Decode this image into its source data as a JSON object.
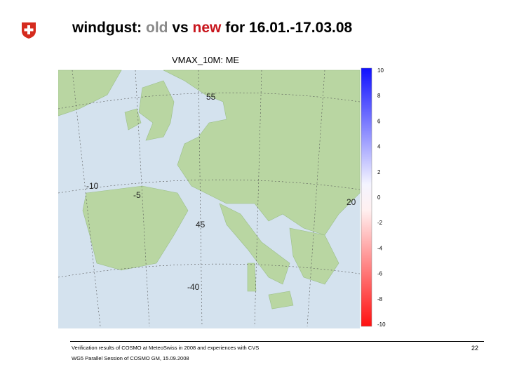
{
  "header": {
    "title": {
      "prefix": "windgust:",
      "old": "old",
      "vs": "vs",
      "new": "new",
      "suffix": "for 16.01.-17.03.08"
    }
  },
  "map": {
    "title": "VMAX_10M: ME",
    "grid_labels": [
      "55",
      "-10",
      "-5",
      "45",
      "-40",
      "20"
    ],
    "colorbar": {
      "ticks": [
        10,
        8,
        6,
        4,
        2,
        0,
        -2,
        -4,
        -6,
        -8,
        -10
      ],
      "lim": [
        -10,
        10
      ]
    }
  },
  "footer": {
    "line1": "Verification results of COSMO at MeteoSwiss in 2008 and experiences with CVS",
    "line2": "WG5 Parallel Session of COSMO GM, 15.09.2008",
    "page": "22"
  }
}
